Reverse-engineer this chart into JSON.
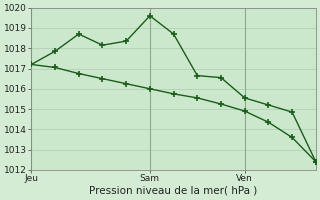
{
  "xlabel": "Pression niveau de la mer( hPa )",
  "bg_color": "#d4ecd4",
  "plot_bg_color": "#cce8cc",
  "grid_color": "#b8d4b8",
  "line_color": "#1a5c1a",
  "ylim": [
    1012,
    1020
  ],
  "yticks": [
    1012,
    1013,
    1014,
    1015,
    1016,
    1017,
    1018,
    1019,
    1020
  ],
  "series1_x": [
    0,
    1,
    2,
    3,
    4,
    5,
    6,
    7,
    8,
    9,
    10,
    11,
    12
  ],
  "series1_y": [
    1017.2,
    1017.05,
    1016.75,
    1016.5,
    1016.25,
    1016.0,
    1015.75,
    1015.55,
    1015.25,
    1014.9,
    1014.35,
    1013.6,
    1012.4
  ],
  "series2_x": [
    0,
    1,
    2,
    3,
    4,
    5,
    6,
    7,
    8,
    9,
    10,
    11,
    12
  ],
  "series2_y": [
    1017.2,
    1017.85,
    1018.7,
    1018.15,
    1018.35,
    1019.6,
    1018.7,
    1016.65,
    1016.55,
    1015.55,
    1015.2,
    1014.85,
    1012.4
  ],
  "xtick_positions": [
    0,
    5,
    9
  ],
  "xtick_labels": [
    "Jeu",
    "Sam",
    "Ven"
  ],
  "vline_positions": [
    0,
    5,
    9
  ]
}
